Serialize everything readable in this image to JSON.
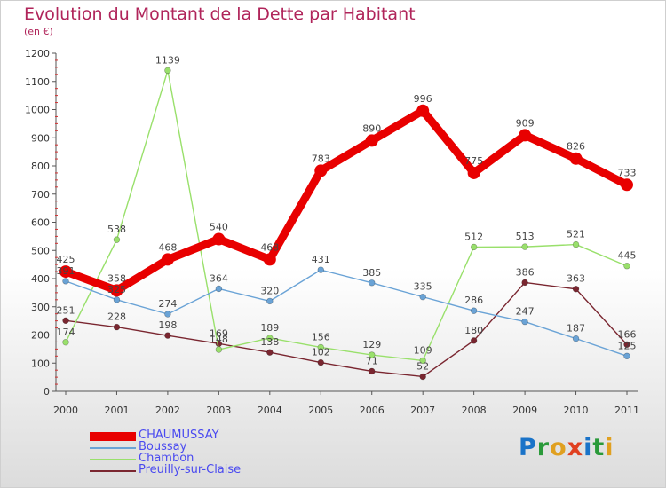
{
  "header": {
    "title": "Evolution du Montant de la Dette par Habitant",
    "subtitle": "(en €)"
  },
  "logo": {
    "text": "Proxiti",
    "letters": [
      "P",
      "r",
      "o",
      "x",
      "i",
      "t",
      "i"
    ],
    "colors": [
      "#1a73c8",
      "#2a9a3a",
      "#e0a020",
      "#e04020",
      "#1a73c8",
      "#2a9a3a",
      "#e0a020"
    ]
  },
  "chart_data": {
    "type": "line",
    "title": "Evolution du Montant de la Dette par Habitant",
    "subtitle": "(en €)",
    "x": [
      "2000",
      "2001",
      "2002",
      "2003",
      "2004",
      "2005",
      "2006",
      "2007",
      "2008",
      "2009",
      "2010",
      "2011"
    ],
    "ylim": [
      0,
      1200
    ],
    "yticks": [
      0,
      100,
      200,
      300,
      400,
      500,
      600,
      700,
      800,
      900,
      1000,
      1100,
      1200
    ],
    "grid": false,
    "legend_position": "bottom-left",
    "series": [
      {
        "name": "CHAUMUSSAY",
        "color": "#e80000",
        "values": [
          425,
          358,
          468,
          540,
          468,
          783,
          890,
          996,
          775,
          909,
          826,
          733
        ],
        "labels": [
          "425",
          "358",
          "468",
          "540",
          "468",
          "783",
          "890",
          "996",
          "775",
          "909",
          "826",
          "733"
        ]
      },
      {
        "name": "Boussay",
        "color": "#6aa3d6",
        "values": [
          391,
          325,
          274,
          364,
          320,
          431,
          385,
          335,
          286,
          247,
          187,
          125
        ],
        "labels": [
          "391",
          "325",
          "274",
          "364",
          "320",
          "431",
          "385",
          "335",
          "286",
          "247",
          "187",
          "125"
        ]
      },
      {
        "name": "Chambon",
        "color": "#99e06b",
        "values": [
          174,
          538,
          1139,
          148,
          189,
          156,
          129,
          109,
          512,
          513,
          521,
          445
        ],
        "labels": [
          "174",
          "538",
          "1139",
          "148",
          "189",
          "156",
          "129",
          "109",
          "512",
          "513",
          "521",
          "445"
        ]
      },
      {
        "name": "Preuilly-sur-Claise",
        "color": "#7a2630",
        "values": [
          251,
          228,
          198,
          169,
          138,
          102,
          71,
          52,
          180,
          386,
          363,
          166
        ],
        "labels": [
          "251",
          "228",
          "198",
          "169",
          "138",
          "102",
          "71",
          "52",
          "180",
          "386",
          "363",
          "166"
        ]
      }
    ]
  }
}
